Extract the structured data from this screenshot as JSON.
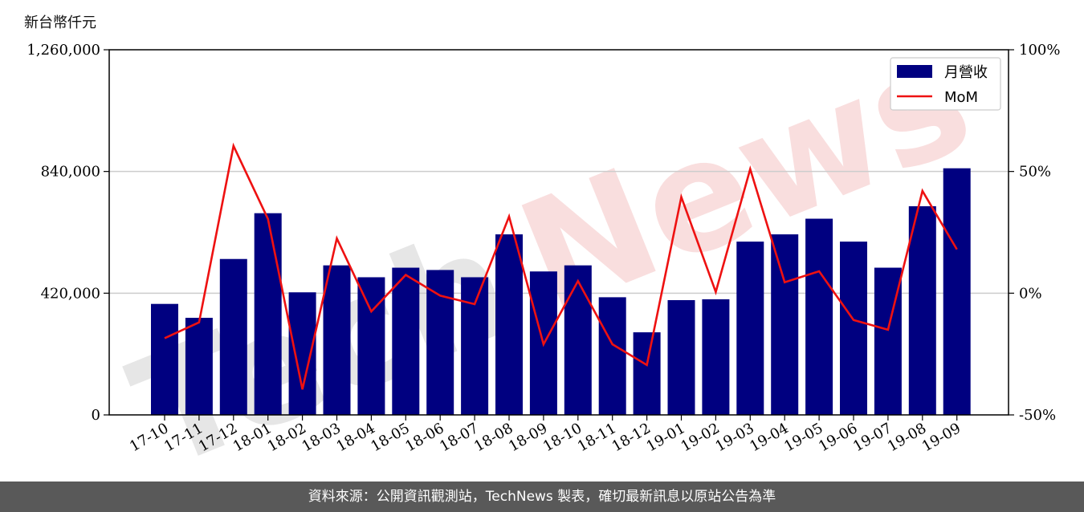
{
  "chart_data": {
    "type": "bar",
    "unit_label": "新台幣仟元",
    "categories": [
      "17-10",
      "17-11",
      "17-12",
      "18-01",
      "18-02",
      "18-03",
      "18-04",
      "18-05",
      "18-06",
      "18-07",
      "18-08",
      "18-09",
      "18-10",
      "18-11",
      "18-12",
      "19-01",
      "19-02",
      "19-03",
      "19-04",
      "19-05",
      "19-06",
      "19-07",
      "19-08",
      "19-09"
    ],
    "series": [
      {
        "name": "月營收",
        "type": "bar",
        "axis": "left",
        "color": "#000080",
        "values": [
          383000,
          335000,
          538000,
          696000,
          423000,
          516000,
          475000,
          508000,
          500000,
          475000,
          623000,
          495000,
          516000,
          406000,
          285000,
          396000,
          399000,
          598000,
          623000,
          677000,
          598000,
          508000,
          720000,
          851000
        ]
      },
      {
        "name": "MoM",
        "type": "line",
        "axis": "right",
        "color": "#ee1111",
        "values": [
          -18.5,
          -12,
          60.5,
          30.5,
          -39.5,
          22.5,
          -7.5,
          7.5,
          -1,
          -4.5,
          31.5,
          -21,
          5,
          -21,
          -29.5,
          39.5,
          0.5,
          51,
          4.5,
          9,
          -11,
          -15,
          42,
          18
        ]
      }
    ],
    "y_left": {
      "range": [
        0,
        1260000
      ],
      "ticks": [
        "0",
        "420,000",
        "840,000",
        "1,260,000"
      ]
    },
    "y_right": {
      "range": [
        -50,
        100
      ],
      "ticks": [
        "-50%",
        "0%",
        "50%",
        "100%"
      ]
    },
    "grid": "horizontal",
    "legend_position": "top-right"
  },
  "watermark": "TechNews",
  "footer_text": "資料來源：公開資訊觀測站，TechNews 製表，確切最新訊息以原站公告為準",
  "colors": {
    "bar": "#000080",
    "line": "#ee1111",
    "grid": "#cccccc",
    "footer_bg": "#595959",
    "watermark_gray": "#e6e6e6",
    "watermark_red": "#f9dede"
  }
}
